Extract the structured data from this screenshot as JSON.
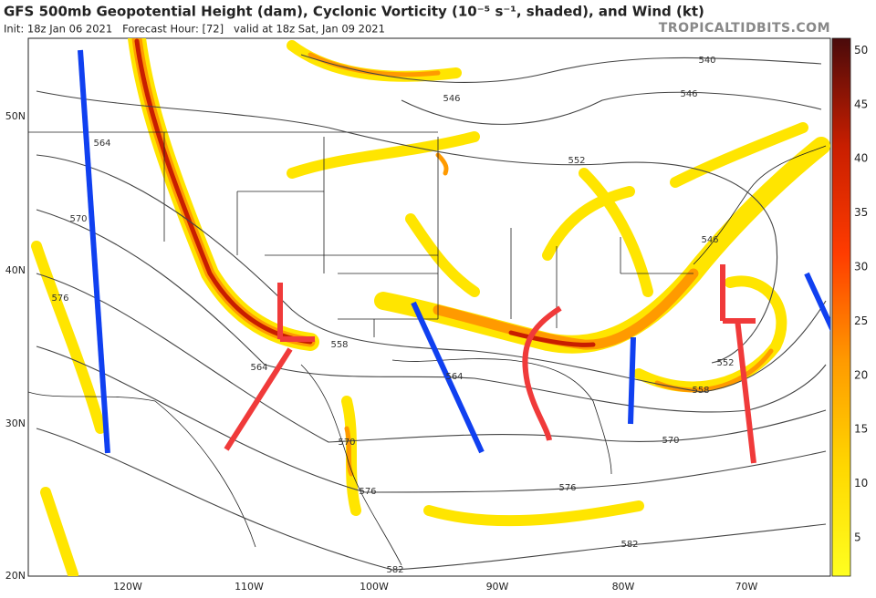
{
  "header": {
    "title": "GFS 500mb Geopotential Height (dam), Cyclonic Vorticity (10⁻⁵ s⁻¹, shaded), and Wind (kt)",
    "subtitle": "Init: 18z Jan 06 2021   Forecast Hour: [72]   valid at 18z Sat, Jan 09 2021",
    "watermark": "TROPICALTIDBITS.COM"
  },
  "map": {
    "lat_labels": [
      "50N",
      "40N",
      "30N",
      "20N"
    ],
    "lon_labels": [
      "120W",
      "110W",
      "100W",
      "90W",
      "80W",
      "70W"
    ],
    "contour_labels": [
      "540",
      "546",
      "546",
      "546",
      "552",
      "552",
      "558",
      "558",
      "564",
      "564",
      "564",
      "570",
      "570",
      "570",
      "576",
      "576",
      "576",
      "582",
      "582"
    ]
  },
  "colorbar": {
    "ticks": [
      5,
      10,
      15,
      20,
      25,
      30,
      35,
      40,
      45,
      50
    ]
  }
}
